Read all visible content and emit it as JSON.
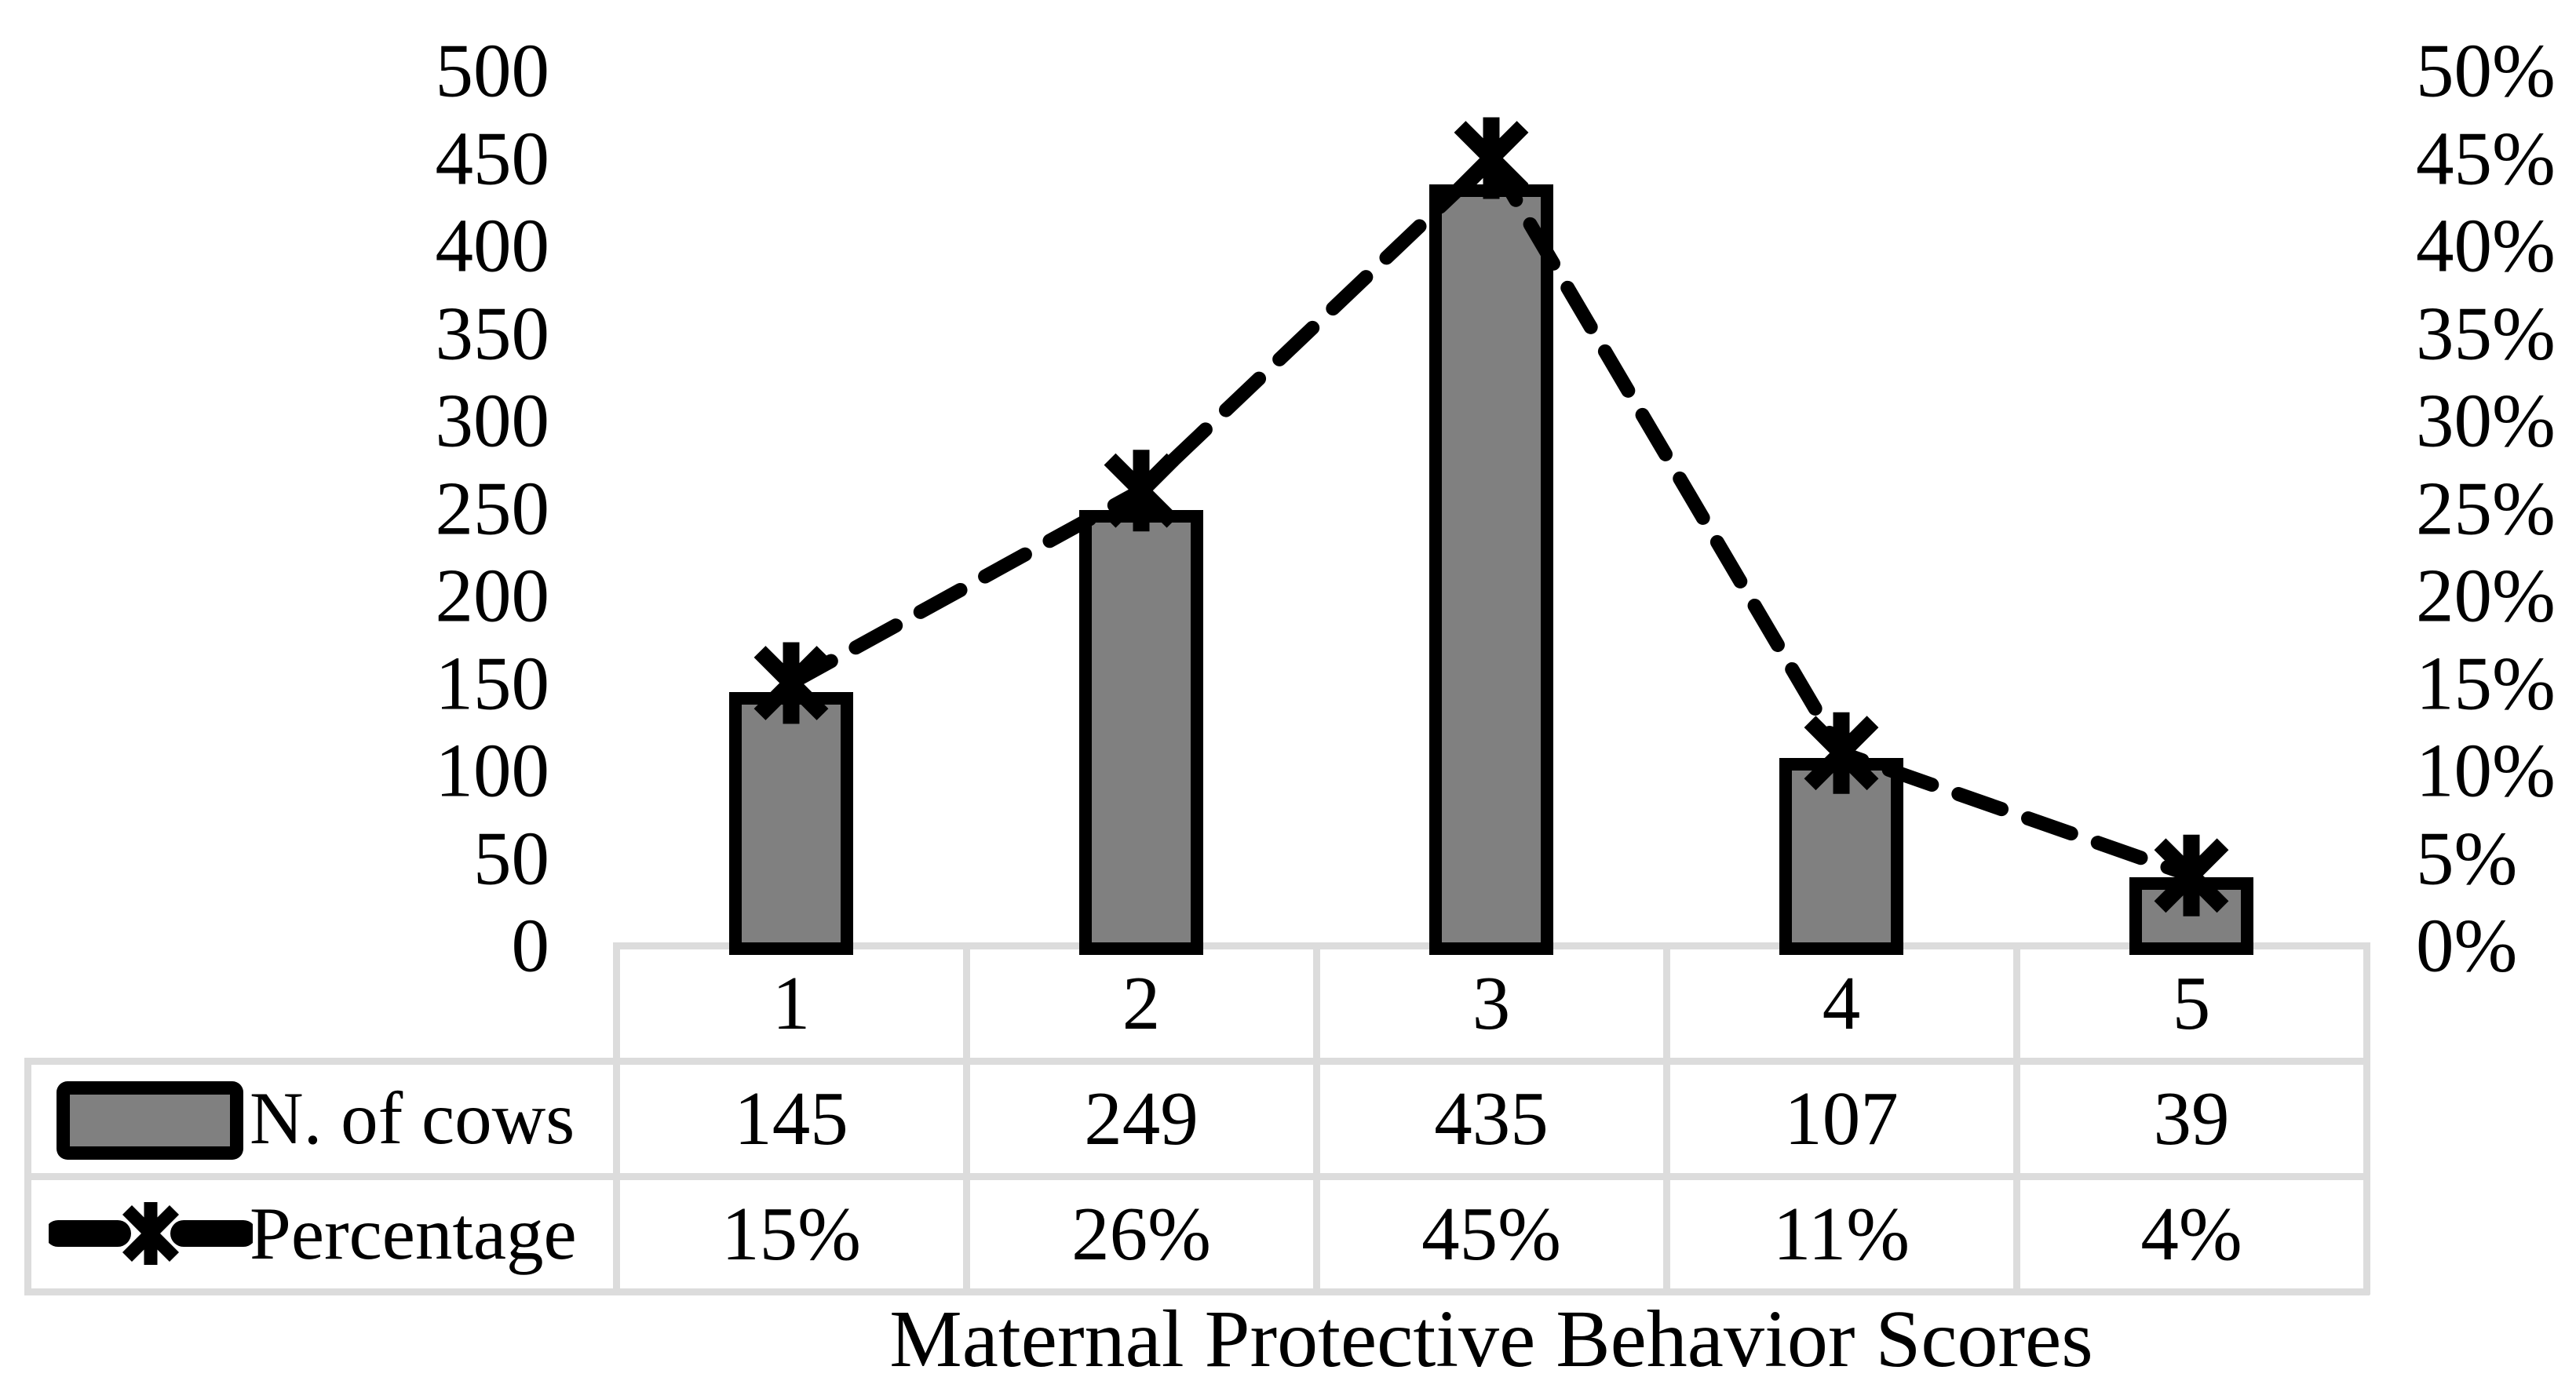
{
  "chart_data": {
    "type": "bar",
    "subtype": "combo-bar-line-dual-axis",
    "title": "",
    "xlabel": "Maternal Protective Behavior Scores",
    "ylabel": "",
    "categories": [
      "1",
      "2",
      "3",
      "4",
      "5"
    ],
    "series": [
      {
        "name": "N. of cows",
        "type": "bar",
        "axis": "left",
        "values": [
          145,
          249,
          435,
          107,
          39
        ],
        "fill_color": "#808080",
        "border_color": "#000000"
      },
      {
        "name": "Percentage",
        "type": "line",
        "axis": "right",
        "line_style": "dashed",
        "marker": "asterisk",
        "color": "#000000",
        "values": [
          15,
          26,
          45,
          11,
          4
        ],
        "value_labels": [
          "15%",
          "26%",
          "45%",
          "11%",
          "4%"
        ]
      }
    ],
    "left_axis": {
      "min": 0,
      "max": 500,
      "step": 50,
      "tick_labels": [
        "500",
        "450",
        "400",
        "350",
        "300",
        "250",
        "200",
        "150",
        "100",
        "50",
        "0"
      ]
    },
    "right_axis": {
      "min": 0,
      "max": 50,
      "step": 5,
      "tick_labels": [
        "50%",
        "45%",
        "40%",
        "35%",
        "30%",
        "25%",
        "20%",
        "15%",
        "10%",
        "5%",
        "0%"
      ]
    },
    "grid": false,
    "legend_position": "data-table-left-column",
    "data_table": {
      "header_row": [
        "1",
        "2",
        "3",
        "4",
        "5"
      ],
      "rows": [
        {
          "label": "N. of cows",
          "cells": [
            "145",
            "249",
            "435",
            "107",
            "39"
          ]
        },
        {
          "label": "Percentage",
          "cells": [
            "15%",
            "26%",
            "45%",
            "11%",
            "4%"
          ]
        }
      ],
      "border_color": "#dcdcdc"
    },
    "colors": {
      "bar_fill": "#808080",
      "bar_border": "#000000",
      "line": "#000000",
      "table_border": "#dcdcdc",
      "text": "#000000",
      "background": "#ffffff"
    }
  }
}
